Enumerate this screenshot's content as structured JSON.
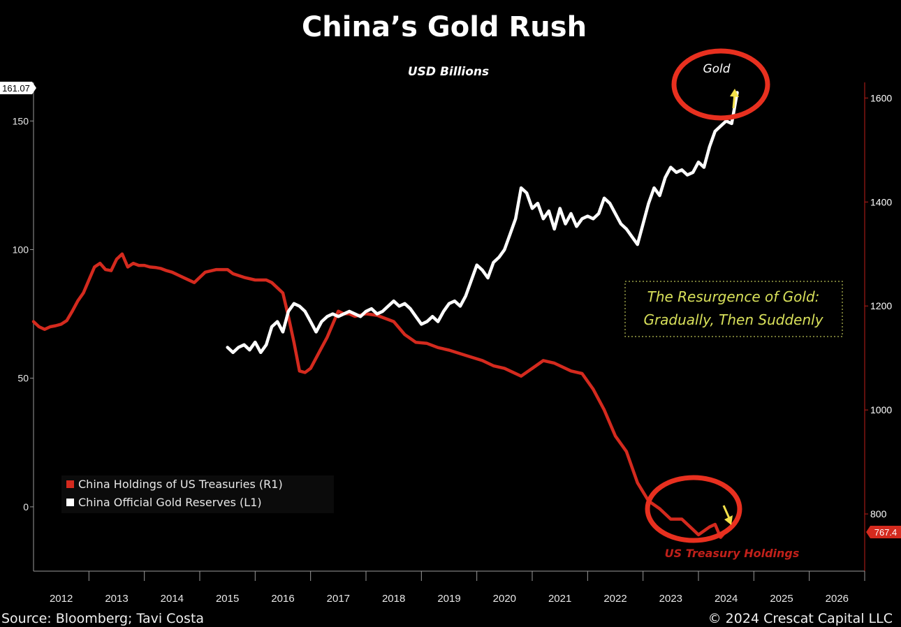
{
  "chart_data": {
    "type": "line",
    "title": "China’s Gold Rush",
    "subtitle": "USD Billions",
    "x_tick_labels": [
      "2012",
      "2013",
      "2014",
      "2015",
      "2016",
      "2017",
      "2018",
      "2019",
      "2020",
      "2021",
      "2022",
      "2023",
      "2024",
      "2025",
      "2026"
    ],
    "xlim": [
      2011.5,
      2026.5
    ],
    "y_left": {
      "ticks": [
        "0",
        "50",
        "100",
        "150"
      ],
      "range": [
        -25,
        165
      ],
      "last_value_badge": "161.07"
    },
    "y_right": {
      "ticks": [
        "800",
        "1000",
        "1200",
        "1400",
        "1600"
      ],
      "range": [
        690,
        1630
      ],
      "last_value_badge": "767.4"
    },
    "grid": false,
    "legend_position": "bottom-left",
    "series": [
      {
        "name": "China Holdings of US Treasuries (R1)",
        "axis": "right",
        "color": "#d42a1e",
        "x": [
          2011.5,
          2011.6,
          2011.7,
          2011.8,
          2011.9,
          2012.0,
          2012.1,
          2012.2,
          2012.3,
          2012.4,
          2012.5,
          2012.6,
          2012.7,
          2012.8,
          2012.9,
          2013.0,
          2013.1,
          2013.2,
          2013.3,
          2013.4,
          2013.5,
          2013.6,
          2013.7,
          2013.8,
          2013.9,
          2014.0,
          2014.2,
          2014.4,
          2014.6,
          2014.8,
          2015.0,
          2015.1,
          2015.3,
          2015.5,
          2015.7,
          2015.8,
          2016.0,
          2016.1,
          2016.2,
          2016.3,
          2016.4,
          2016.5,
          2016.6,
          2016.7,
          2016.8,
          2016.9,
          2017.0,
          2017.1,
          2017.2,
          2017.3,
          2017.5,
          2017.7,
          2017.8,
          2018.0,
          2018.2,
          2018.4,
          2018.6,
          2018.8,
          2019.0,
          2019.3,
          2019.6,
          2019.8,
          2020.0,
          2020.3,
          2020.5,
          2020.7,
          2020.9,
          2021.0,
          2021.2,
          2021.4,
          2021.6,
          2021.8,
          2022.0,
          2022.2,
          2022.4,
          2022.6,
          2022.8,
          2023.0,
          2023.2,
          2023.4,
          2023.5,
          2023.7,
          2023.8,
          2023.9,
          2024.0
        ],
        "values": [
          1170,
          1160,
          1155,
          1160,
          1162,
          1165,
          1172,
          1190,
          1210,
          1225,
          1250,
          1275,
          1282,
          1270,
          1268,
          1290,
          1300,
          1275,
          1282,
          1278,
          1278,
          1275,
          1274,
          1272,
          1268,
          1265,
          1255,
          1245,
          1265,
          1270,
          1270,
          1262,
          1255,
          1250,
          1250,
          1245,
          1225,
          1180,
          1130,
          1075,
          1072,
          1080,
          1100,
          1120,
          1140,
          1165,
          1190,
          1185,
          1185,
          1180,
          1185,
          1182,
          1178,
          1170,
          1145,
          1130,
          1128,
          1120,
          1115,
          1105,
          1095,
          1085,
          1080,
          1065,
          1080,
          1095,
          1090,
          1085,
          1075,
          1070,
          1040,
          1000,
          950,
          920,
          860,
          825,
          810,
          790,
          790,
          770,
          760,
          775,
          780,
          755,
          767.4
        ]
      },
      {
        "name": "China Official Gold Reserves (L1)",
        "axis": "left",
        "color": "#ffffff",
        "x": [
          2015.0,
          2015.1,
          2015.2,
          2015.3,
          2015.4,
          2015.5,
          2015.6,
          2015.7,
          2015.8,
          2015.9,
          2016.0,
          2016.1,
          2016.2,
          2016.3,
          2016.4,
          2016.5,
          2016.6,
          2016.7,
          2016.8,
          2016.9,
          2017.0,
          2017.1,
          2017.2,
          2017.3,
          2017.4,
          2017.5,
          2017.6,
          2017.7,
          2017.8,
          2017.9,
          2018.0,
          2018.1,
          2018.2,
          2018.3,
          2018.4,
          2018.5,
          2018.6,
          2018.7,
          2018.8,
          2018.9,
          2019.0,
          2019.1,
          2019.2,
          2019.3,
          2019.4,
          2019.5,
          2019.6,
          2019.7,
          2019.8,
          2019.9,
          2020.0,
          2020.1,
          2020.2,
          2020.3,
          2020.4,
          2020.5,
          2020.6,
          2020.7,
          2020.8,
          2020.9,
          2021.0,
          2021.1,
          2021.2,
          2021.3,
          2021.4,
          2021.5,
          2021.6,
          2021.7,
          2021.8,
          2021.9,
          2022.0,
          2022.1,
          2022.2,
          2022.3,
          2022.4,
          2022.5,
          2022.6,
          2022.7,
          2022.8,
          2022.9,
          2023.0,
          2023.1,
          2023.2,
          2023.3,
          2023.4,
          2023.5,
          2023.6,
          2023.7,
          2023.8,
          2023.9,
          2024.0,
          2024.1,
          2024.2
        ],
        "values": [
          62,
          60,
          62,
          63,
          61,
          64,
          60,
          63,
          70,
          72,
          68,
          76,
          79,
          78,
          76,
          72,
          68,
          72,
          74,
          75,
          74,
          75,
          76,
          75,
          74,
          76,
          77,
          75,
          76,
          78,
          80,
          78,
          79,
          77,
          74,
          71,
          72,
          74,
          72,
          76,
          79,
          80,
          78,
          82,
          88,
          94,
          92,
          89,
          95,
          97,
          100,
          106,
          112,
          124,
          122,
          116,
          118,
          112,
          115,
          108,
          116,
          110,
          114,
          109,
          112,
          113,
          112,
          114,
          120,
          118,
          114,
          110,
          108,
          105,
          102,
          110,
          118,
          124,
          121,
          128,
          132,
          130,
          131,
          129,
          130,
          134,
          132,
          140,
          146,
          148,
          150,
          149,
          161.07
        ]
      }
    ],
    "annotations": {
      "box_line1": "The Resurgence of Gold:",
      "box_line2": "Gradually, Then Suddenly",
      "gold_label": "Gold",
      "ust_label": "US Treasury Holdings"
    },
    "source": "Source: Bloomberg; Tavi Costa",
    "copyright": "© 2024 Crescat Capital LLC"
  }
}
